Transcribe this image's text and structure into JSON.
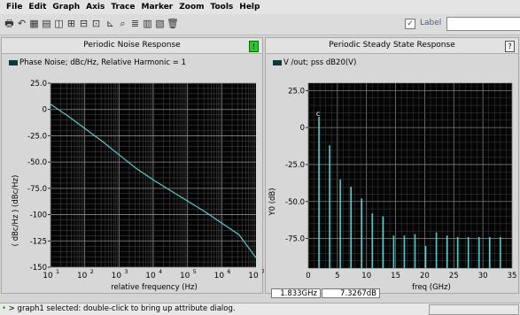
{
  "menu": [
    "File",
    "Edit",
    "Graph",
    "Axis",
    "Trace",
    "Marker",
    "Zoom",
    "Tools",
    "Help"
  ],
  "toolbar": {
    "icons": [
      "print-icon",
      "undo-icon",
      "grid-icon",
      "strip-icon",
      "split-icon",
      "subwindow-icon",
      "subwindow-2-icon",
      "subwindow-3-icon",
      "axis-icon",
      "zoom-in-icon",
      "table-icon",
      "chart-icon",
      "properties-icon",
      "delete-icon"
    ],
    "label_checkbox": "✓",
    "label_text": "Label",
    "label_field": ""
  },
  "left_panel": {
    "title": "Periodic Noise Response",
    "badge": "!",
    "badge_color": "#22cc22",
    "legend": "Phase Noise; dBc/Hz, Relative Harmonic = 1",
    "ylabel": "( dBc/Hz ) (dBc/Hz)",
    "xlabel": "relative frequency (Hz)",
    "y_ticks": [
      "25.0",
      "0",
      "-25.0",
      "-50.0",
      "-75.0",
      "-100",
      "-125",
      "-150"
    ],
    "x_ticks": [
      {
        "base": "10",
        "exp": "1"
      },
      {
        "base": "10",
        "exp": "2"
      },
      {
        "base": "10",
        "exp": "3"
      },
      {
        "base": "10",
        "exp": "4"
      },
      {
        "base": "10",
        "exp": "5"
      },
      {
        "base": "10",
        "exp": "6"
      },
      {
        "base": "10",
        "exp": "7"
      }
    ]
  },
  "right_panel": {
    "title": "Periodic Steady State Response",
    "badge": "?",
    "legend": "V /out; pss dB20(V)",
    "ylabel": "Y0 (dB)",
    "xlabel": "freq (GHz)",
    "marker_label": "c",
    "y_ticks": [
      "25.0",
      "0",
      "-25.0",
      "-50.0",
      "-75.0"
    ],
    "x_ticks": [
      "0",
      "5",
      "10",
      "15",
      "20",
      "25",
      "30",
      "35"
    ],
    "readout_x": "1.833GHz",
    "readout_y": "7.3267dB"
  },
  "status": {
    "text": "> graph1 selected: double-click to bring up attribute dialog."
  },
  "colors": {
    "trace": "#5fc8c8",
    "plot_bg": "#050505",
    "grid": "#6e6e6e"
  },
  "chart_data": [
    {
      "type": "line",
      "title": "Periodic Noise Response",
      "xlabel": "relative frequency (Hz)",
      "ylabel": "( dBc/Hz ) (dBc/Hz)",
      "xscale": "log",
      "xlim": [
        10,
        10000000
      ],
      "ylim": [
        -150,
        25
      ],
      "grid": true,
      "series": [
        {
          "name": "Phase Noise; dBc/Hz, Relative Harmonic = 1",
          "x": [
            10,
            31.6,
            100,
            316,
            1000,
            3162,
            10000,
            31623,
            100000,
            316228,
            1000000,
            3162278,
            10000000
          ],
          "y": [
            5,
            -6,
            -18,
            -30,
            -43,
            -56,
            -67,
            -77,
            -87,
            -97,
            -108,
            -119,
            -141
          ]
        }
      ]
    },
    {
      "type": "bar",
      "title": "Periodic Steady State Response",
      "xlabel": "freq (GHz)",
      "ylabel": "Y0 (dB)",
      "xlim": [
        0,
        35
      ],
      "ylim": [
        -95,
        30
      ],
      "grid": true,
      "series": [
        {
          "name": "V /out; pss dB20(V)",
          "x": [
            1.833,
            3.666,
            5.5,
            7.333,
            9.166,
            11.0,
            12.833,
            14.666,
            16.5,
            18.333,
            20.166,
            22.0,
            23.833,
            25.666,
            27.5,
            29.333,
            31.166,
            33.0
          ],
          "y": [
            7.33,
            -12,
            -35,
            -40,
            -48,
            -58,
            -60,
            -73,
            -73,
            -72,
            -80,
            -71,
            -73,
            -74,
            -74,
            -74,
            -74,
            -74
          ]
        }
      ]
    }
  ]
}
